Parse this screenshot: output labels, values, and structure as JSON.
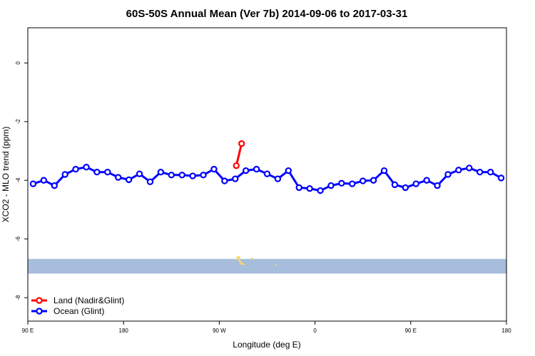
{
  "chart_data": {
    "type": "line",
    "title": "60S-50S Annual Mean (Ver 7b)   2014-09-06 to 2017-03-31",
    "xlabel": "Longitude (deg E)",
    "ylabel": "XCO2 - MLO trend (ppm)",
    "xlim": [
      90,
      540
    ],
    "ylim": [
      -8.8,
      1.2
    ],
    "x_ticks": [
      {
        "value": 90,
        "label": "90 E"
      },
      {
        "value": 180,
        "label": "180"
      },
      {
        "value": 270,
        "label": "90 W"
      },
      {
        "value": 360,
        "label": "0"
      },
      {
        "value": 450,
        "label": "90 E"
      },
      {
        "value": 540,
        "label": "180"
      }
    ],
    "y_ticks": [
      {
        "value": 0,
        "label": "0"
      },
      {
        "value": -2,
        "label": "-2"
      },
      {
        "value": -4,
        "label": "-4"
      },
      {
        "value": -6,
        "label": "-6"
      },
      {
        "value": -8,
        "label": "-8"
      }
    ],
    "legend_position": "bottom-left",
    "map_strip": {
      "y_range": [
        -7.18,
        -6.68
      ],
      "color": "#a6bddb",
      "land_color": "#f5d76e"
    },
    "series": [
      {
        "name": "Land (Nadir&Glint)",
        "color": "#ff0000",
        "x": [
          286,
          291
        ],
        "y": [
          -3.5,
          -2.75
        ]
      },
      {
        "name": "Ocean (Glint)",
        "color": "#0000ff",
        "x": [
          95,
          105,
          115,
          125,
          135,
          145,
          155,
          165,
          175,
          185,
          195,
          205,
          215,
          225,
          235,
          245,
          255,
          265,
          275,
          285,
          295,
          305,
          315,
          325,
          335,
          345,
          355,
          365,
          375,
          385,
          395,
          405,
          415,
          425,
          435,
          445,
          455,
          465,
          475,
          485,
          495,
          505,
          515,
          525,
          535
        ],
        "y": [
          -4.12,
          -4.0,
          -4.18,
          -3.8,
          -3.62,
          -3.55,
          -3.72,
          -3.72,
          -3.9,
          -3.98,
          -3.78,
          -4.05,
          -3.72,
          -3.82,
          -3.82,
          -3.85,
          -3.82,
          -3.62,
          -4.02,
          -3.95,
          -3.67,
          -3.62,
          -3.78,
          -3.95,
          -3.67,
          -4.25,
          -4.28,
          -4.35,
          -4.18,
          -4.1,
          -4.12,
          -4.02,
          -4.0,
          -3.67,
          -4.15,
          -4.25,
          -4.12,
          -4.0,
          -4.18,
          -3.8,
          -3.65,
          -3.58,
          -3.72,
          -3.72,
          -3.92
        ]
      }
    ]
  }
}
